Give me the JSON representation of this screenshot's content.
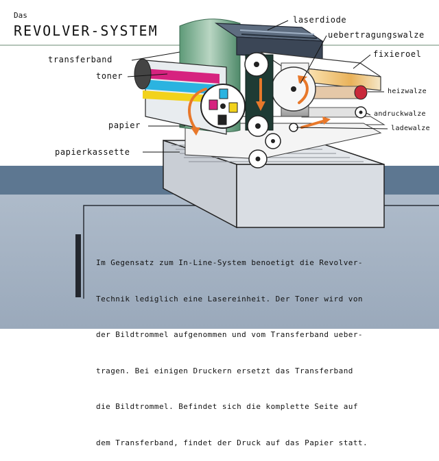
{
  "header": {
    "title_prefix": "Das",
    "title": "REVOLVER-SYSTEM"
  },
  "labels": {
    "laserdiode": "laserdiode",
    "uebertragungswalze": "uebertragungswalze",
    "fixieroel": "fixieroel",
    "transferband": "transferband",
    "toner": "toner",
    "heizwalze": "heizwalze",
    "andruckwalze": "andruckwalze",
    "ladewalze": "ladewalze",
    "papier": "papier",
    "papierkassette": "papierkassette"
  },
  "description": {
    "lines": [
      "Im Gegensatz zum In-Line-System benoetigt die Revolver-",
      "Technik lediglich eine Lasereinheit. Der Toner wird von",
      "der Bildtrommel aufgenommen und vom Transferband ueber-",
      "tragen. Bei einigen Druckern ersetzt das Transferband",
      "die Bildtrommel. Befindet sich die komplette Seite auf",
      "dem Transferband, findet der Druck auf das Papier statt."
    ]
  },
  "colors": {
    "band_blue": "#5d7791",
    "panel_blue": "#a7b6c7",
    "arrow_orange": "#e8782a",
    "toner_magenta": "#d6237f",
    "toner_cyan": "#2bb3e0",
    "toner_yellow": "#f2d21b",
    "heizwalze_red": "#c8283a"
  }
}
